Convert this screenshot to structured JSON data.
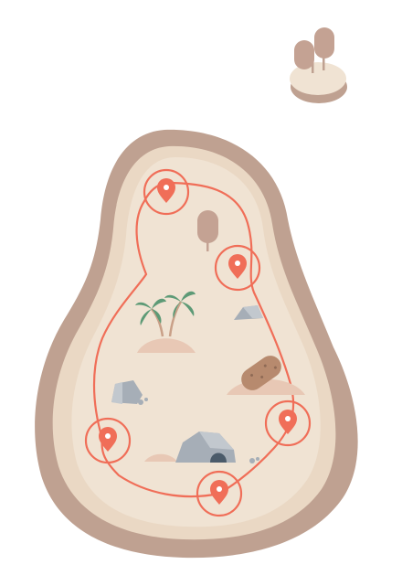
{
  "colors": {
    "island_shadow": "#bfa191",
    "island_sand": "#f0e3d3",
    "island_edge": "#ead8c4",
    "route": "#f06e58",
    "marker": "#f06e58",
    "tree": "#c4a293",
    "palm_leaf": "#5d9a76",
    "rock": "#a6aeb7",
    "mound": "#e8c8b5"
  },
  "icons": [
    "islet-icon",
    "tree-icon",
    "palm-tree-icon",
    "rock-icon",
    "cave-icon",
    "peanut-icon",
    "map-pin-icon"
  ],
  "markers": [
    {
      "id": "top",
      "label": ""
    },
    {
      "id": "upper-right",
      "label": ""
    },
    {
      "id": "right",
      "label": ""
    },
    {
      "id": "bottom",
      "label": ""
    },
    {
      "id": "left",
      "label": ""
    }
  ]
}
